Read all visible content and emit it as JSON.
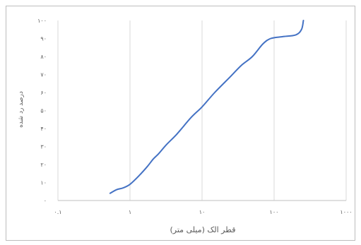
{
  "chart_data": {
    "type": "line",
    "title": "",
    "xlabel": "قطر الک (میلی متر)",
    "ylabel": "درصد رد شده",
    "x_scale": "log",
    "xlim": [
      0.1,
      1000
    ],
    "ylim": [
      0,
      100
    ],
    "x_ticks": [
      {
        "value": 0.1,
        "label": "۰.۱"
      },
      {
        "value": 1,
        "label": "۱"
      },
      {
        "value": 10,
        "label": "۱۰"
      },
      {
        "value": 100,
        "label": "۱۰۰"
      },
      {
        "value": 1000,
        "label": "۱۰۰۰"
      }
    ],
    "y_ticks": [
      {
        "value": 0,
        "label": "۰"
      },
      {
        "value": 10,
        "label": "۱۰"
      },
      {
        "value": 20,
        "label": "۲۰"
      },
      {
        "value": 30,
        "label": "۳۰"
      },
      {
        "value": 40,
        "label": "۴۰"
      },
      {
        "value": 50,
        "label": "۵۰"
      },
      {
        "value": 60,
        "label": "۶۰"
      },
      {
        "value": 70,
        "label": "۷۰"
      },
      {
        "value": 80,
        "label": "۸۰"
      },
      {
        "value": 90,
        "label": "۹۰"
      },
      {
        "value": 100,
        "label": "۱۰۰"
      }
    ],
    "grid": {
      "x": true,
      "y": false
    },
    "legend": "none",
    "series": [
      {
        "color": "#4472c4",
        "x": [
          0.53,
          0.65,
          0.8,
          1.0,
          1.35,
          1.75,
          2.1,
          2.5,
          3.2,
          4.5,
          7,
          10,
          15,
          25,
          35,
          50,
          70,
          90,
          130,
          200,
          240,
          255
        ],
        "y": [
          4,
          6,
          7,
          9,
          14,
          19,
          23,
          26,
          31,
          37,
          46,
          52,
          60,
          69,
          75,
          80,
          87,
          90,
          91,
          92,
          95,
          100
        ]
      }
    ]
  }
}
